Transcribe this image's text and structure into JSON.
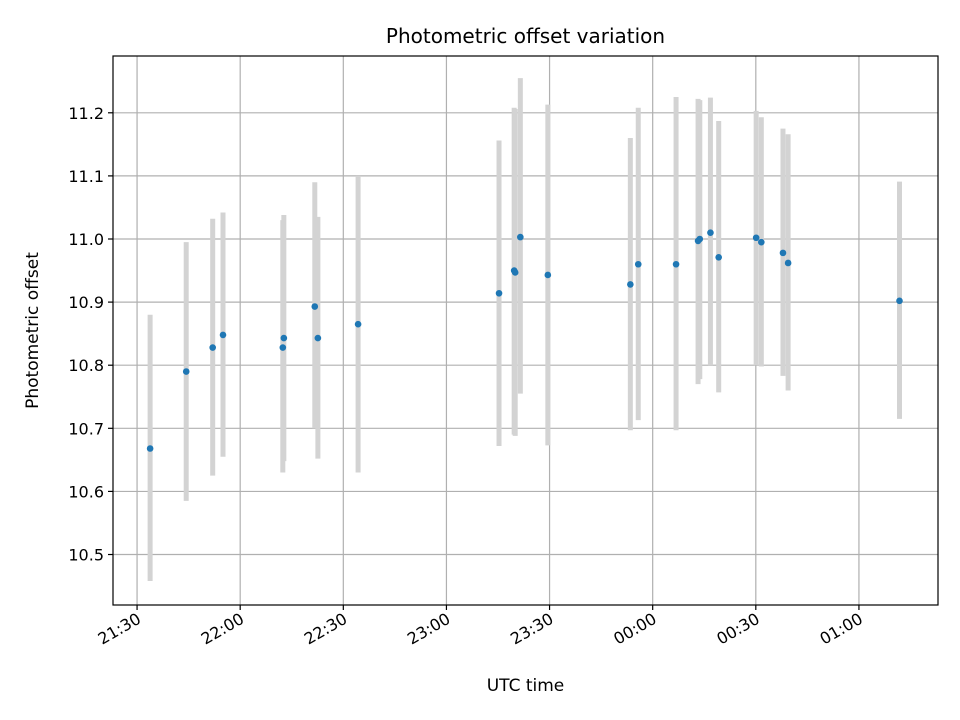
{
  "chart_data": {
    "type": "scatter",
    "title": "Photometric offset variation",
    "xlabel": "UTC time",
    "ylabel": "Photometric offset",
    "x_axis": {
      "kind": "time",
      "range": [
        "21:23",
        "01:23"
      ],
      "ticks": [
        "21:30",
        "22:00",
        "22:30",
        "23:00",
        "23:30",
        "00:00",
        "00:30",
        "01:00"
      ]
    },
    "y_axis": {
      "range": [
        10.42,
        11.29
      ],
      "ticks": [
        "10.5",
        "10.6",
        "10.7",
        "10.8",
        "10.9",
        "11.0",
        "11.1",
        "11.2"
      ]
    },
    "grid": true,
    "colors": {
      "point": "#1f77b4",
      "errorbar": "#d3d3d3",
      "grid": "#b0b0b0"
    },
    "series": [
      {
        "points": [
          {
            "t": "21:33.8",
            "y": 10.668,
            "lo": 10.458,
            "hi": 10.88
          },
          {
            "t": "21:44.3",
            "y": 10.79,
            "lo": 10.585,
            "hi": 10.995
          },
          {
            "t": "21:52.0",
            "y": 10.828,
            "lo": 10.625,
            "hi": 11.032
          },
          {
            "t": "21:55.0",
            "y": 10.848,
            "lo": 10.655,
            "hi": 11.042
          },
          {
            "t": "22:12.4",
            "y": 10.828,
            "lo": 10.63,
            "hi": 11.03
          },
          {
            "t": "22:12.7",
            "y": 10.843,
            "lo": 10.648,
            "hi": 11.038
          },
          {
            "t": "22:21.7",
            "y": 10.893,
            "lo": 10.7,
            "hi": 11.09
          },
          {
            "t": "22:22.6",
            "y": 10.843,
            "lo": 10.652,
            "hi": 11.035
          },
          {
            "t": "22:34.3",
            "y": 10.865,
            "lo": 10.63,
            "hi": 11.1
          },
          {
            "t": "23:15.3",
            "y": 10.914,
            "lo": 10.672,
            "hi": 11.156
          },
          {
            "t": "23:19.7",
            "y": 10.95,
            "lo": 10.69,
            "hi": 11.208
          },
          {
            "t": "23:20.0",
            "y": 10.947,
            "lo": 10.688,
            "hi": 11.206
          },
          {
            "t": "23:21.5",
            "y": 11.003,
            "lo": 10.755,
            "hi": 11.255
          },
          {
            "t": "23:29.5",
            "y": 10.943,
            "lo": 10.673,
            "hi": 11.213
          },
          {
            "t": "23:53.5",
            "y": 10.928,
            "lo": 10.697,
            "hi": 11.16
          },
          {
            "t": "23:55.8",
            "y": 10.96,
            "lo": 10.713,
            "hi": 11.208
          },
          {
            "t": "00:06.8",
            "y": 10.96,
            "lo": 10.697,
            "hi": 11.225
          },
          {
            "t": "00:13.2",
            "y": 10.997,
            "lo": 10.77,
            "hi": 11.222
          },
          {
            "t": "00:13.7",
            "y": 11.0,
            "lo": 10.778,
            "hi": 11.22
          },
          {
            "t": "00:16.8",
            "y": 11.01,
            "lo": 10.8,
            "hi": 11.224
          },
          {
            "t": "00:19.2",
            "y": 10.971,
            "lo": 10.757,
            "hi": 11.187
          },
          {
            "t": "00:30.1",
            "y": 11.002,
            "lo": 10.8,
            "hi": 11.203
          },
          {
            "t": "00:31.6",
            "y": 10.995,
            "lo": 10.798,
            "hi": 11.193
          },
          {
            "t": "00:37.9",
            "y": 10.978,
            "lo": 10.783,
            "hi": 11.175
          },
          {
            "t": "00:39.4",
            "y": 10.962,
            "lo": 10.76,
            "hi": 11.166
          },
          {
            "t": "01:11.8",
            "y": 10.902,
            "lo": 10.715,
            "hi": 11.091
          }
        ]
      }
    ]
  }
}
